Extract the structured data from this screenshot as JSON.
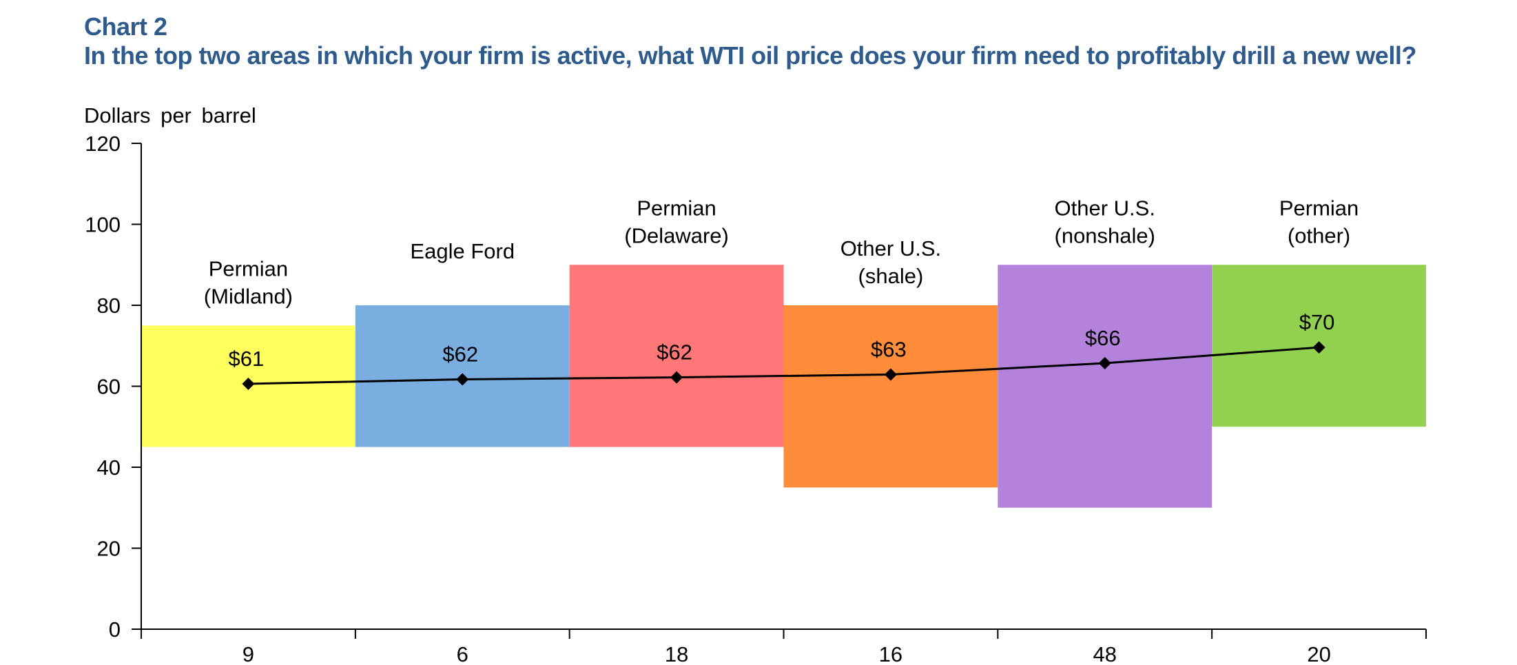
{
  "header": {
    "chart_label": "Chart 2",
    "title": "In the top two areas in which your firm is active, what WTI oil price does your firm need to profitably drill a new well?"
  },
  "chart_data": {
    "type": "bar",
    "title": "In the top two areas in which your firm is active, what WTI oil price does your firm need to profitably drill a new well?",
    "ylabel": "Dollars per barrel",
    "xlabel": "",
    "ylim": [
      0,
      120
    ],
    "yticks": [
      "0",
      "20",
      "40",
      "60",
      "80",
      "100",
      "120"
    ],
    "grid": false,
    "categories": [
      {
        "label_lines": [
          "Permian",
          "(Midland)"
        ],
        "respondents": "9",
        "color": "#ffff5e",
        "low": 45,
        "high": 75,
        "avg": 60.6,
        "avg_label": "$61"
      },
      {
        "label_lines": [
          "Eagle  Ford"
        ],
        "respondents": "6",
        "color": "#7aaee0",
        "low": 45,
        "high": 80,
        "avg": 61.7,
        "avg_label": "$62"
      },
      {
        "label_lines": [
          "Permian",
          "(Delaware)"
        ],
        "respondents": "18",
        "color": "#ff7777",
        "low": 45,
        "high": 90,
        "avg": 62.2,
        "avg_label": "$62"
      },
      {
        "label_lines": [
          "Other  U.S.",
          "(shale)"
        ],
        "respondents": "16",
        "color": "#ff8c3a",
        "low": 35,
        "high": 80,
        "avg": 62.9,
        "avg_label": "$63"
      },
      {
        "label_lines": [
          "Other U.S.",
          "(nonshale)"
        ],
        "respondents": "48",
        "color": "#b383db",
        "low": 30,
        "high": 90,
        "avg": 65.7,
        "avg_label": "$66"
      },
      {
        "label_lines": [
          "Permian",
          "(other)"
        ],
        "respondents": "20",
        "color": "#92d050",
        "low": 50,
        "high": 90,
        "avg": 69.6,
        "avg_label": "$70"
      }
    ],
    "series": [
      {
        "values": [
          60.6,
          61.7,
          62.2,
          62.9,
          65.7,
          69.6
        ],
        "color": "#000000"
      }
    ]
  }
}
